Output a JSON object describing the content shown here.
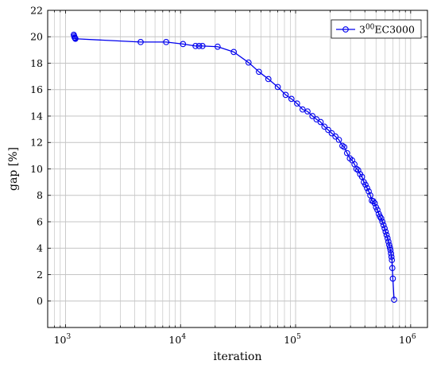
{
  "chart_data": {
    "type": "line",
    "xlabel": "iteration",
    "ylabel": "gap [%]",
    "xscale": "log",
    "xlim": [
      700,
      1400000
    ],
    "ylim": [
      -2,
      22
    ],
    "grid": true,
    "legend_position": "top-right",
    "x_ticks": [
      {
        "value": 1000,
        "base": "10",
        "exp": "3"
      },
      {
        "value": 10000,
        "base": "10",
        "exp": "4"
      },
      {
        "value": 100000,
        "base": "10",
        "exp": "5"
      },
      {
        "value": 1000000,
        "base": "10",
        "exp": "6"
      }
    ],
    "y_ticks": [
      0,
      2,
      4,
      6,
      8,
      10,
      12,
      14,
      16,
      18,
      20,
      22
    ],
    "series": [
      {
        "name_base": "3",
        "name_sup": "00",
        "name_rest": "EC3000",
        "color": "#0000ee",
        "marker": "circle",
        "x": [
          1180,
          1190,
          1200,
          1210,
          1220,
          4500,
          7500,
          10500,
          13500,
          14500,
          15500,
          21000,
          29000,
          39000,
          48000,
          58000,
          70000,
          82000,
          92000,
          103000,
          115000,
          127000,
          140000,
          152000,
          165000,
          178000,
          192000,
          206000,
          222000,
          238000,
          255000,
          265000,
          280000,
          296000,
          310000,
          325000,
          338000,
          350000,
          364000,
          378000,
          392000,
          405000,
          418000,
          432000,
          446000,
          460000,
          474000,
          487000,
          500000,
          514000,
          528000,
          541000,
          555000,
          568000,
          581000,
          594000,
          606000,
          618000,
          630000,
          641000,
          651000,
          660000,
          668000,
          675000,
          681000,
          687000,
          693000,
          700000,
          718000
        ],
        "y": [
          20.15,
          20.05,
          19.95,
          19.9,
          19.85,
          19.6,
          19.6,
          19.45,
          19.3,
          19.3,
          19.3,
          19.25,
          18.85,
          18.05,
          17.35,
          16.8,
          16.2,
          15.6,
          15.3,
          14.95,
          14.5,
          14.35,
          14.0,
          13.75,
          13.55,
          13.2,
          12.95,
          12.7,
          12.45,
          12.2,
          11.75,
          11.65,
          11.2,
          10.8,
          10.65,
          10.35,
          10.0,
          9.9,
          9.6,
          9.4,
          9.0,
          8.8,
          8.55,
          8.3,
          8.0,
          7.6,
          7.55,
          7.4,
          7.1,
          6.9,
          6.6,
          6.4,
          6.25,
          6.0,
          5.75,
          5.5,
          5.25,
          5.0,
          4.75,
          4.5,
          4.25,
          4.05,
          3.85,
          3.6,
          3.35,
          3.1,
          2.5,
          1.7,
          0.1
        ]
      }
    ]
  }
}
